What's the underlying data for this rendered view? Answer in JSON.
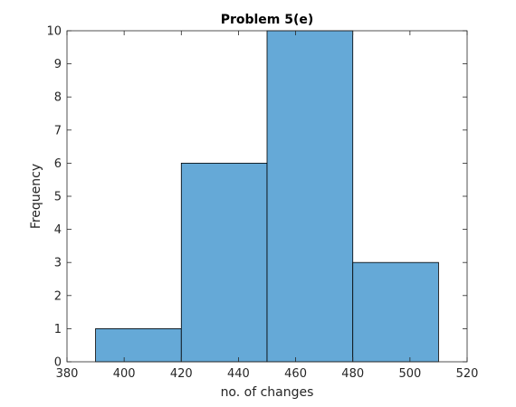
{
  "chart_data": {
    "type": "bar",
    "subtype": "histogram",
    "title": "Problem 5(e)",
    "xlabel": "no. of changes",
    "ylabel": "Frequency",
    "bin_edges": [
      390,
      420,
      450,
      480,
      510
    ],
    "counts": [
      1,
      6,
      10,
      3
    ],
    "xlim": [
      380,
      520
    ],
    "ylim": [
      0,
      10
    ],
    "xticks": [
      380,
      400,
      420,
      440,
      460,
      480,
      500,
      520
    ],
    "yticks": [
      0,
      1,
      2,
      3,
      4,
      5,
      6,
      7,
      8,
      9,
      10
    ],
    "bar_color": "#65a9d7",
    "edge_color": "#000000",
    "grid": false,
    "box": true
  }
}
